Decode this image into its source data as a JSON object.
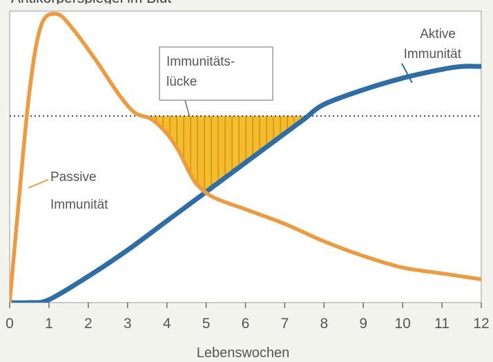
{
  "chart_data": {
    "type": "line",
    "title": "Antikörperspiegel im Blut",
    "xlabel": "Lebenswochen",
    "ylabel": "",
    "xlim": [
      0,
      12
    ],
    "ylim": [
      0,
      100
    ],
    "x_ticks": [
      "0",
      "1",
      "2",
      "3",
      "4",
      "5",
      "6",
      "7",
      "8",
      "9",
      "10",
      "11",
      "12"
    ],
    "threshold": 64,
    "series": [
      {
        "name": "Passive Immunität",
        "color": "#ef9a3c",
        "points": [
          [
            0,
            0
          ],
          [
            0.2,
            30
          ],
          [
            0.5,
            72
          ],
          [
            0.8,
            95
          ],
          [
            1.2,
            99
          ],
          [
            1.6,
            94
          ],
          [
            2.2,
            83
          ],
          [
            2.8,
            71
          ],
          [
            3.2,
            65
          ],
          [
            3.6,
            63
          ],
          [
            4.0,
            58
          ],
          [
            4.3,
            52
          ],
          [
            4.6,
            44
          ],
          [
            4.8,
            40
          ],
          [
            5.2,
            36
          ],
          [
            6.0,
            32
          ],
          [
            7.0,
            27
          ],
          [
            8.0,
            21
          ],
          [
            9.0,
            16
          ],
          [
            10.0,
            12
          ],
          [
            11.0,
            10
          ],
          [
            12.0,
            8
          ]
        ]
      },
      {
        "name": "Aktive Immunität",
        "color": "#2d6ea8",
        "points": [
          [
            0,
            0
          ],
          [
            0.5,
            0
          ],
          [
            1.0,
            1
          ],
          [
            2.0,
            9
          ],
          [
            3.0,
            18
          ],
          [
            4.0,
            28
          ],
          [
            5.0,
            38
          ],
          [
            6.0,
            48
          ],
          [
            7.0,
            58
          ],
          [
            7.5,
            63
          ],
          [
            8.0,
            68
          ],
          [
            9.0,
            73
          ],
          [
            10.0,
            77
          ],
          [
            11.0,
            80
          ],
          [
            11.5,
            81
          ],
          [
            12.0,
            81
          ]
        ]
      }
    ],
    "gap_fill_color": "#f3bd2e",
    "annotations": {
      "passive_label": [
        "Passive",
        "Immunität"
      ],
      "active_label": [
        "Aktive",
        "Immunität"
      ],
      "gap_label": [
        "Immunitäts-",
        "lücke"
      ]
    }
  }
}
